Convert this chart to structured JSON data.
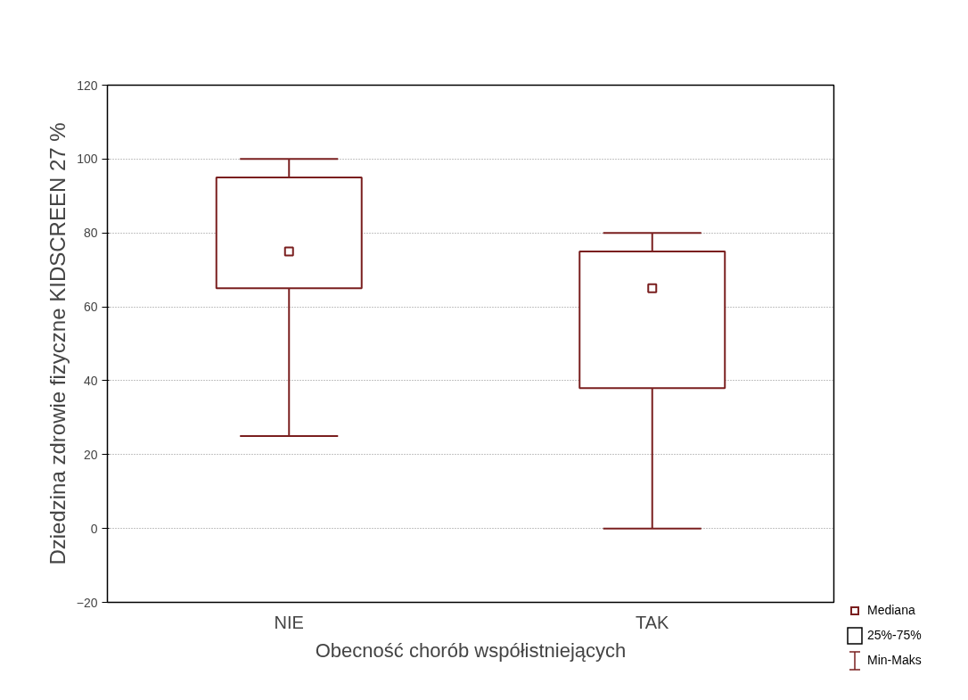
{
  "chart_data": {
    "type": "box",
    "xlabel": "Obecność chorób współistniejących",
    "ylabel": "Dziedzina zdrowie fizyczne KIDSCREEN 27 %",
    "categories": [
      "NIE",
      "TAK"
    ],
    "series": [
      {
        "color": "#7a1f1f",
        "boxes": [
          {
            "low": 25,
            "q1": 65,
            "median": 75,
            "q3": 95,
            "high": 100
          },
          {
            "low": 0,
            "q1": 38,
            "median": 65,
            "q3": 75,
            "high": 80
          }
        ]
      }
    ],
    "ylim": [
      -20,
      120
    ],
    "yticks": [
      -20,
      0,
      20,
      40,
      60,
      80,
      100,
      120
    ],
    "grid": "y",
    "marker": "square",
    "annotations": [
      "Mediana",
      "25%-75%",
      "Min-Maks"
    ]
  }
}
